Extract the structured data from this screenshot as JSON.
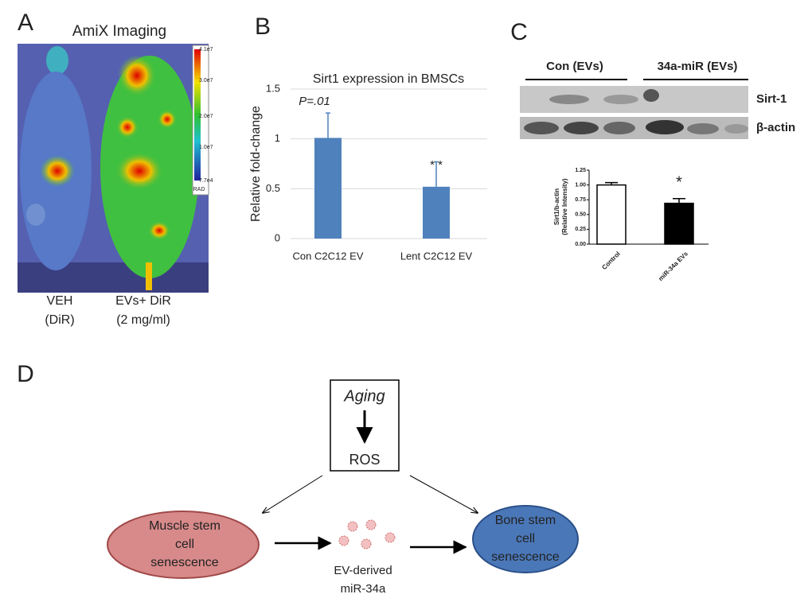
{
  "panels": [
    "A",
    "B",
    "C",
    "D"
  ],
  "imaging": {
    "title": "AmiX Imaging",
    "scale_labels": [
      "4.1e7",
      "3.0e7",
      "2.0e7",
      "1.0e7",
      "7.7e4",
      "RAD"
    ],
    "captions": [
      [
        "VEH",
        "(DiR)"
      ],
      [
        "EVs+ DiR",
        "(2 mg/ml)"
      ]
    ]
  },
  "chart_data": [
    {
      "type": "bar",
      "title": "Sirt1 expression in BMSCs",
      "y_label": "Relative fold-change",
      "categories": [
        "Con C2C12 EV",
        "Lent C2C12 EV"
      ],
      "values": [
        1.01,
        0.52
      ],
      "errors": [
        0.25,
        0.25
      ],
      "color": "#4f81bd",
      "ylim": [
        0,
        1.5
      ],
      "yticks": [
        0,
        0.5,
        1,
        1.5
      ],
      "grid": true,
      "annotations": [
        "P=.01",
        "* *"
      ]
    },
    {
      "type": "bar",
      "y_label": [
        "Sirt1/b-actin",
        "(Relative Intensity)"
      ],
      "categories": [
        "Control",
        "miR-34a EVs"
      ],
      "values": [
        1.0,
        0.69
      ],
      "errors": [
        0.04,
        0.08
      ],
      "colors": [
        "#ffffff",
        "#000000"
      ],
      "ylim": [
        0,
        1.25
      ],
      "yticks": [
        {
          "value": 0,
          "label": "0.00"
        },
        {
          "value": 0.25,
          "label": "0.25"
        },
        {
          "value": 0.5,
          "label": "0.50"
        },
        {
          "value": 0.75,
          "label": "0.75"
        },
        {
          "value": 1,
          "label": "1.00"
        },
        {
          "value": 1.25,
          "label": "1.25"
        }
      ],
      "grid": false,
      "annotations": [
        "*"
      ]
    }
  ],
  "blot": {
    "groups": [
      "Con (EVs)",
      "34a-miR (EVs)"
    ],
    "bands": [
      "Sirt-1",
      "β-actin"
    ]
  },
  "diagram": {
    "box": [
      "Aging",
      "ROS"
    ],
    "left": [
      "Muscle stem",
      "cell",
      "senescence"
    ],
    "right": [
      "Bone stem",
      "cell",
      "senescence"
    ],
    "ev": [
      "EV-derived",
      "miR-34a"
    ]
  }
}
